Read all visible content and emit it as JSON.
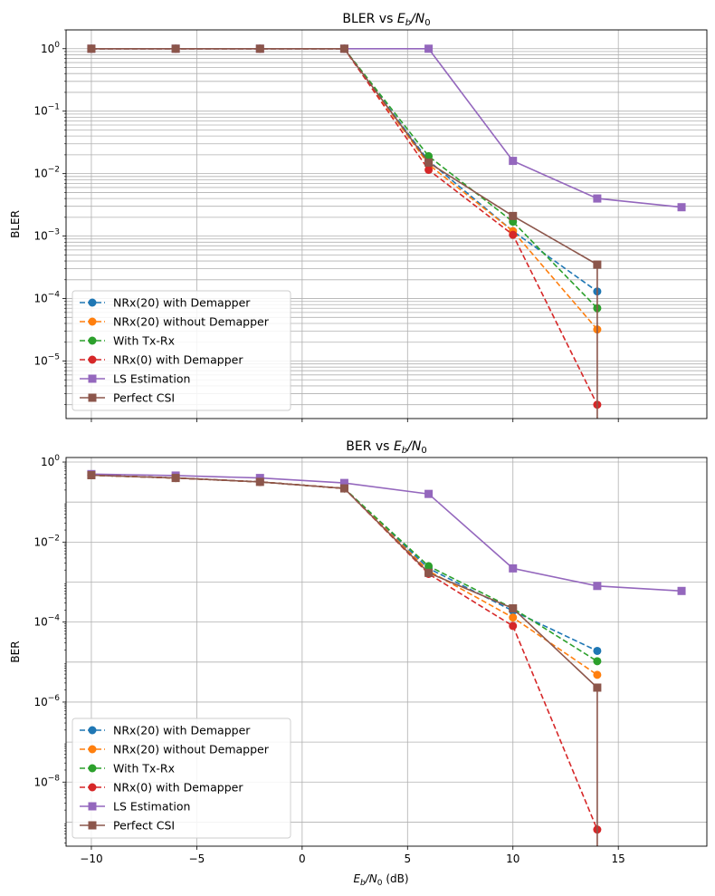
{
  "chart_data": [
    {
      "type": "line",
      "title": "BLER vs E_b/N_0",
      "title_prefix": "BLER vs ",
      "title_E": "E",
      "title_Esub": "b",
      "title_slash": "/N",
      "title_Nsub": "0",
      "xlabel": "",
      "ylabel": "BLER",
      "yscale": "log",
      "xlim": [
        -11.2,
        19.2
      ],
      "ylim": [
        1.2e-06,
        2.0
      ],
      "grid": true,
      "grid_minor_y": true,
      "legend_position": "lower-left",
      "x_ticks": [
        -10,
        -5,
        0,
        5,
        10,
        15
      ],
      "x_tick_labels_visible": false,
      "y_ticks": [
        {
          "exp": 0,
          "label_base": "10",
          "label_exp": "0"
        },
        {
          "exp": -1,
          "label_base": "10",
          "label_exp": "−1"
        },
        {
          "exp": -2,
          "label_base": "10",
          "label_exp": "−2"
        },
        {
          "exp": -3,
          "label_base": "10",
          "label_exp": "−3"
        },
        {
          "exp": -4,
          "label_base": "10",
          "label_exp": "−4"
        },
        {
          "exp": -5,
          "label_base": "10",
          "label_exp": "−5"
        }
      ],
      "series": [
        {
          "name": "NRx(20) with Demapper",
          "color": "#1f77b4",
          "dash": true,
          "marker": "circle",
          "x": [
            -10,
            -6,
            -2,
            2,
            6,
            10,
            14
          ],
          "y": [
            1,
            1,
            1,
            1,
            0.016,
            0.0012,
            0.00013
          ]
        },
        {
          "name": "NRx(20) without Demapper",
          "color": "#ff7f0e",
          "dash": true,
          "marker": "circle",
          "x": [
            -10,
            -6,
            -2,
            2,
            6,
            10,
            14
          ],
          "y": [
            1,
            1,
            1,
            1,
            0.014,
            0.0012,
            3.2e-05
          ]
        },
        {
          "name": "With Tx-Rx",
          "color": "#2ca02c",
          "dash": true,
          "marker": "circle",
          "x": [
            -10,
            -6,
            -2,
            2,
            6,
            10,
            14
          ],
          "y": [
            1,
            1,
            1,
            1,
            0.019,
            0.0017,
            7e-05
          ]
        },
        {
          "name": "NRx(0) with Demapper",
          "color": "#d62728",
          "dash": true,
          "marker": "circle",
          "x": [
            -10,
            -6,
            -2,
            2,
            6,
            10,
            14
          ],
          "y": [
            1,
            1,
            1,
            1,
            0.0115,
            0.00105,
            2e-06
          ]
        },
        {
          "name": "LS Estimation",
          "color": "#9467bd",
          "dash": false,
          "marker": "square",
          "x": [
            -10,
            -6,
            -2,
            2,
            6,
            10,
            14,
            18
          ],
          "y": [
            1,
            1,
            1,
            1,
            1,
            0.016,
            0.004,
            0.0029
          ]
        },
        {
          "name": "Perfect CSI",
          "color": "#8c564b",
          "dash": false,
          "marker": "square",
          "x": [
            -10,
            -6,
            -2,
            2,
            6,
            10,
            14
          ],
          "y": [
            1,
            1,
            1,
            1,
            0.015,
            0.0021,
            0.00035
          ],
          "drop_to_zero_after_last": true
        }
      ]
    },
    {
      "type": "line",
      "title": "BER vs E_b/N_0",
      "title_prefix": "BER vs ",
      "title_E": "E",
      "title_Esub": "b",
      "title_slash": "/N",
      "title_Nsub": "0",
      "xlabel": "E_b/N_0 (dB)",
      "xlabel_E": "E",
      "xlabel_Esub": "b",
      "xlabel_slash": "/N",
      "xlabel_Nsub": "0",
      "xlabel_suffix": " (dB)",
      "ylabel": "BER",
      "yscale": "log",
      "xlim": [
        -11.2,
        19.2
      ],
      "ylim": [
        2.5e-10,
        1.3
      ],
      "grid": true,
      "grid_minor_y": false,
      "legend_position": "lower-left",
      "x_ticks": [
        -10,
        -5,
        0,
        5,
        10,
        15
      ],
      "x_tick_labels": [
        "−10",
        "−5",
        "0",
        "5",
        "10",
        "15"
      ],
      "x_tick_labels_visible": true,
      "y_ticks": [
        {
          "exp": 0,
          "label_base": "10",
          "label_exp": "0"
        },
        {
          "exp": -2,
          "label_base": "10",
          "label_exp": "−2"
        },
        {
          "exp": -4,
          "label_base": "10",
          "label_exp": "−4"
        },
        {
          "exp": -6,
          "label_base": "10",
          "label_exp": "−6"
        },
        {
          "exp": -8,
          "label_base": "10",
          "label_exp": "−8"
        }
      ],
      "series": [
        {
          "name": "NRx(20) with Demapper",
          "color": "#1f77b4",
          "dash": true,
          "marker": "circle",
          "x": [
            -10,
            -6,
            -2,
            2,
            6,
            10,
            14
          ],
          "y": [
            0.47,
            0.4,
            0.32,
            0.22,
            0.0022,
            0.00019,
            1.9e-05
          ]
        },
        {
          "name": "NRx(20) without Demapper",
          "color": "#ff7f0e",
          "dash": true,
          "marker": "circle",
          "x": [
            -10,
            -6,
            -2,
            2,
            6,
            10,
            14
          ],
          "y": [
            0.47,
            0.4,
            0.32,
            0.22,
            0.0019,
            0.00013,
            4.8e-06
          ]
        },
        {
          "name": "With Tx-Rx",
          "color": "#2ca02c",
          "dash": true,
          "marker": "circle",
          "x": [
            -10,
            -6,
            -2,
            2,
            6,
            10,
            14
          ],
          "y": [
            0.47,
            0.4,
            0.32,
            0.22,
            0.0025,
            0.00022,
            1.05e-05
          ]
        },
        {
          "name": "NRx(0) with Demapper",
          "color": "#d62728",
          "dash": true,
          "marker": "circle",
          "x": [
            -10,
            -6,
            -2,
            2,
            6,
            10,
            14
          ],
          "y": [
            0.47,
            0.4,
            0.32,
            0.22,
            0.0016,
            8e-05,
            6.5e-10
          ]
        },
        {
          "name": "LS Estimation",
          "color": "#9467bd",
          "dash": false,
          "marker": "square",
          "x": [
            -10,
            -6,
            -2,
            2,
            6,
            10,
            14,
            18
          ],
          "y": [
            0.5,
            0.46,
            0.4,
            0.3,
            0.16,
            0.0022,
            0.0008,
            0.0006
          ]
        },
        {
          "name": "Perfect CSI",
          "color": "#8c564b",
          "dash": false,
          "marker": "square",
          "x": [
            -10,
            -6,
            -2,
            2,
            6,
            10,
            14
          ],
          "y": [
            0.47,
            0.4,
            0.32,
            0.22,
            0.0017,
            0.00022,
            2.3e-06
          ],
          "drop_to_zero_after_last": true
        }
      ]
    }
  ]
}
